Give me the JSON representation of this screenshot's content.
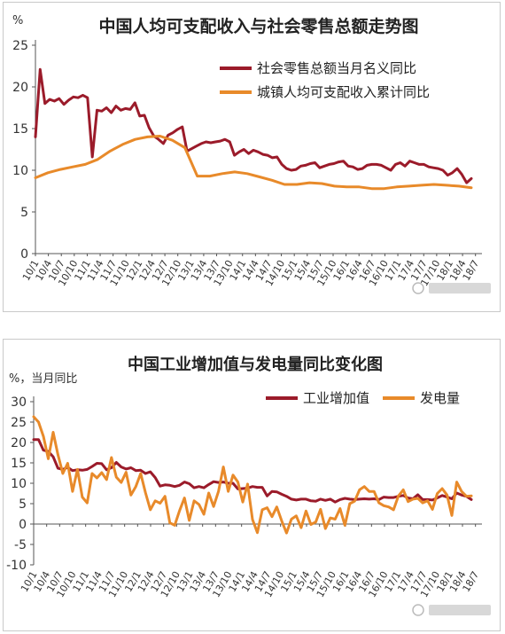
{
  "chart_data": [
    {
      "type": "line",
      "title": "中国人均可支配收入与社会零售总额走势图",
      "ylabel": "%",
      "ylim": [
        0,
        25
      ],
      "yticks": [
        0,
        5,
        10,
        15,
        20,
        25
      ],
      "grid": false,
      "legend": "top-right",
      "xtick_labels": [
        "10/1",
        "10/4",
        "10/7",
        "10/10",
        "11/1",
        "11/4",
        "11/7",
        "11/10",
        "12/1",
        "12/4",
        "12/7",
        "12/10",
        "13/1",
        "13/4",
        "13/7",
        "13/10",
        "14/1",
        "14/4",
        "14/7",
        "14/10",
        "15/1",
        "15/4",
        "15/7",
        "15/10",
        "16/1",
        "16/4",
        "16/7",
        "16/10",
        "17/1",
        "17/4",
        "17/7",
        "17/10",
        "18/1",
        "18/4",
        "18/7"
      ],
      "series": [
        {
          "name": "社会零售总额当月名义同比",
          "color": "#9b1b2a",
          "values": [
            14.0,
            22.1,
            18.0,
            18.5,
            18.3,
            18.6,
            17.9,
            18.4,
            18.8,
            18.7,
            19.0,
            18.7,
            11.6,
            17.2,
            17.1,
            17.5,
            16.9,
            17.7,
            17.2,
            17.4,
            17.3,
            18.1,
            16.5,
            16.6,
            15.1,
            14.1,
            13.7,
            13.2,
            14.2,
            14.5,
            14.9,
            15.2,
            12.3,
            12.6,
            12.9,
            13.2,
            13.4,
            13.3,
            13.4,
            13.5,
            13.7,
            13.4,
            11.8,
            12.2,
            12.5,
            12.0,
            12.4,
            12.2,
            11.9,
            11.8,
            11.5,
            11.6,
            10.7,
            10.2,
            10.0,
            10.1,
            10.5,
            10.6,
            10.8,
            10.9,
            10.3,
            10.5,
            10.7,
            10.8,
            11.0,
            11.1,
            10.5,
            10.4,
            10.1,
            10.2,
            10.6,
            10.7,
            10.7,
            10.6,
            10.3,
            10.0,
            10.7,
            10.9,
            10.5,
            11.1,
            10.9,
            10.7,
            10.7,
            10.4,
            10.3,
            10.2,
            10.0,
            9.4,
            9.7,
            10.2,
            9.5,
            8.5,
            9.0
          ],
          "x_start": "10/1"
        },
        {
          "name": "城镇人均可支配收入累计同比",
          "color": "#e88a2a",
          "values": [
            9.1,
            9.7,
            10.1,
            10.4,
            10.7,
            11.3,
            12.3,
            13.1,
            13.7,
            14.0,
            14.1,
            13.6,
            12.7,
            9.3,
            9.3,
            9.6,
            9.8,
            9.6,
            9.2,
            8.8,
            8.3,
            8.3,
            8.5,
            8.4,
            8.1,
            8.0,
            8.0,
            7.8,
            7.8,
            8.0,
            8.1,
            8.2,
            8.3,
            8.2,
            8.1,
            7.9
          ],
          "x_start": "10/1",
          "sampling": "quarterly"
        }
      ]
    },
    {
      "type": "line",
      "title": "中国工业增加值与发电量同比变化图",
      "ylabel": "%，当月同比",
      "ylim": [
        -10,
        30
      ],
      "yticks": [
        -10,
        -5,
        0,
        5,
        10,
        15,
        20,
        25,
        30
      ],
      "grid": false,
      "legend": "top-right",
      "xtick_labels": [
        "10/1",
        "10/4",
        "10/7",
        "10/10",
        "11/1",
        "11/4",
        "11/7",
        "11/10",
        "12/1",
        "12/4",
        "12/7",
        "12/10",
        "13/1",
        "13/4",
        "13/7",
        "13/10",
        "14/1",
        "14/4",
        "14/7",
        "14/10",
        "15/1",
        "15/4",
        "15/7",
        "15/10",
        "16/1",
        "16/4",
        "16/7",
        "16/10",
        "17/1",
        "17/4",
        "17/7",
        "17/10",
        "18/1",
        "18/4",
        "18/7"
      ],
      "series": [
        {
          "name": "工业增加值",
          "color": "#9b1b2a",
          "values": [
            20.7,
            20.7,
            18.1,
            17.8,
            16.5,
            13.7,
            13.4,
            13.9,
            13.1,
            13.3,
            13.2,
            13.4,
            14.1,
            14.9,
            14.8,
            13.3,
            13.8,
            15.1,
            14.0,
            13.5,
            13.8,
            13.1,
            13.2,
            12.4,
            12.8,
            11.4,
            9.3,
            9.6,
            9.5,
            9.2,
            9.5,
            10.3,
            9.9,
            8.9,
            9.2,
            8.9,
            9.7,
            10.4,
            10.2,
            10.3,
            10.0,
            10.0,
            8.6,
            8.7,
            8.8,
            9.2,
            9.0,
            9.0,
            6.9,
            8.0,
            7.9,
            7.3,
            6.8,
            6.1,
            5.9,
            6.1,
            6.1,
            5.7,
            5.6,
            6.1,
            5.8,
            6.1,
            5.4,
            6.0,
            6.3,
            6.1,
            6.0,
            6.1,
            6.2,
            6.1,
            6.2,
            6.0,
            6.6,
            6.5,
            6.5,
            6.8,
            7.0,
            6.4,
            6.2,
            7.2,
            6.0,
            6.0,
            5.9,
            6.4,
            7.0,
            6.6,
            6.2,
            7.6,
            7.1,
            6.8,
            6.0
          ],
          "x_start": "10/1"
        },
        {
          "name": "发电量",
          "color": "#e88a2a",
          "values": [
            26.3,
            25.0,
            21.5,
            16.0,
            22.5,
            17.0,
            12.4,
            14.9,
            8.0,
            13.4,
            6.6,
            5.2,
            12.4,
            11.3,
            12.6,
            10.9,
            16.3,
            11.5,
            10.2,
            12.7,
            7.1,
            9.2,
            12.4,
            7.7,
            3.5,
            5.7,
            5.1,
            6.8,
            0.3,
            -0.3,
            3.3,
            6.4,
            0.9,
            5.7,
            4.8,
            2.4,
            7.6,
            4.3,
            8.0,
            14.0,
            8.0,
            12.0,
            10.3,
            5.4,
            9.8,
            1.1,
            -2.1,
            3.5,
            4.0,
            1.8,
            4.2,
            0.8,
            -2.2,
            1.2,
            2.0,
            -0.9,
            3.2,
            -0.1,
            0.5,
            3.6,
            -1.1,
            1.5,
            1.2,
            3.8,
            -0.3,
            5.0,
            5.6,
            8.4,
            9.2,
            8.0,
            8.0,
            5.2,
            4.5,
            4.2,
            3.5,
            6.9,
            8.4,
            5.5,
            6.1,
            6.3,
            5.2,
            5.7,
            3.6,
            7.5,
            8.7,
            7.1,
            2.1,
            10.3,
            8.0,
            6.8,
            6.9
          ],
          "x_start": "10/1"
        }
      ]
    }
  ]
}
